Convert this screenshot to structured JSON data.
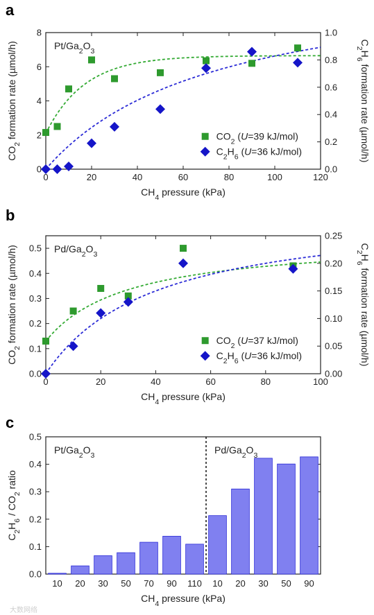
{
  "chart_data": [
    {
      "panel": "a",
      "type": "scatter",
      "annotation": "Pt/Ga2O3",
      "xlabel": "CH4 pressure (kPa)",
      "xlim": [
        0,
        120
      ],
      "xticks": [
        0,
        20,
        40,
        60,
        80,
        100,
        120
      ],
      "y_left": {
        "label": "CO2 formation rate (µmol/h)",
        "lim": [
          0,
          8
        ],
        "ticks": [
          0,
          2,
          4,
          6,
          8
        ],
        "color": "#2eab2e"
      },
      "y_right": {
        "label": "C2H6 formation rate (µmol/h)",
        "lim": [
          0,
          1.0
        ],
        "ticks": [
          "0.0",
          "0.2",
          "0.4",
          "0.6",
          "0.8",
          "1.0"
        ],
        "color": "#2a2ad6"
      },
      "series": [
        {
          "name": "CO2 (U=39 kJ/mol)",
          "label_parts": [
            "CO",
            "2",
            " (",
            "U",
            "=39 kJ/mol)"
          ],
          "axis": "left",
          "marker": "square",
          "color": "#2e9a2e",
          "fit_color": "#33aa33",
          "x": [
            0,
            5,
            10,
            20,
            30,
            50,
            70,
            90,
            110
          ],
          "y": [
            2.15,
            2.5,
            4.7,
            6.4,
            5.3,
            5.65,
            6.35,
            6.2,
            7.1
          ]
        },
        {
          "name": "C2H6 (U=36 kJ/mol)",
          "label_parts": [
            "C",
            "2",
            "H",
            "6",
            " (",
            "U",
            "=36 kJ/mol)"
          ],
          "axis": "right",
          "marker": "diamond",
          "color": "#1515c8",
          "fit_color": "#2a2ad6",
          "x": [
            0,
            5,
            10,
            20,
            30,
            50,
            70,
            90,
            110
          ],
          "y": [
            0.0,
            0.0,
            0.02,
            0.19,
            0.31,
            0.44,
            0.74,
            0.86,
            0.78
          ]
        }
      ]
    },
    {
      "panel": "b",
      "type": "scatter",
      "annotation": "Pd/Ga2O3",
      "xlabel": "CH4 pressure (kPa)",
      "xlim": [
        0,
        100
      ],
      "xticks": [
        0,
        20,
        40,
        60,
        80,
        100
      ],
      "y_left": {
        "label": "CO2 formation rate (µmol/h)",
        "lim": [
          0,
          0.55
        ],
        "ticks": [
          "0.0",
          "0.1",
          "0.2",
          "0.3",
          "0.4",
          "0.5"
        ],
        "color": "#2eab2e"
      },
      "y_right": {
        "label": "C2H6 formation rate (µmol/h)",
        "lim": [
          0,
          0.25
        ],
        "ticks": [
          "0.00",
          "0.05",
          "0.10",
          "0.15",
          "0.20",
          "0.25"
        ],
        "color": "#2a2ad6"
      },
      "series": [
        {
          "name": "CO2 (U=37 kJ/mol)",
          "label_parts": [
            "CO",
            "2",
            " (",
            "U",
            "=37 kJ/mol)"
          ],
          "axis": "left",
          "marker": "square",
          "color": "#2e9a2e",
          "fit_color": "#33aa33",
          "x": [
            0,
            10,
            20,
            30,
            50,
            90
          ],
          "y": [
            0.13,
            0.25,
            0.34,
            0.31,
            0.5,
            0.43
          ]
        },
        {
          "name": "C2H6 (U=36 kJ/mol)",
          "label_parts": [
            "C",
            "2",
            "H",
            "6",
            " (",
            "U",
            "=36 kJ/mol)"
          ],
          "axis": "right",
          "marker": "diamond",
          "color": "#1515c8",
          "fit_color": "#2a2ad6",
          "x": [
            0,
            10,
            20,
            30,
            50,
            90
          ],
          "y": [
            0.0,
            0.05,
            0.11,
            0.13,
            0.2,
            0.19
          ]
        }
      ]
    },
    {
      "panel": "c",
      "type": "bar",
      "xlabel": "CH4 pressure (kPa)",
      "ylabel": "C2H6 / CO2 ratio",
      "ylim": [
        0,
        0.5
      ],
      "yticks": [
        "0.0",
        "0.1",
        "0.2",
        "0.3",
        "0.4",
        "0.5"
      ],
      "bar_color": "#8080f0",
      "groups": [
        {
          "name": "Pt/Ga2O3",
          "categories": [
            "10",
            "20",
            "30",
            "50",
            "70",
            "90",
            "110"
          ],
          "values": [
            0.003,
            0.03,
            0.067,
            0.078,
            0.116,
            0.138,
            0.109
          ]
        },
        {
          "name": "Pd/Ga2O3",
          "categories": [
            "10",
            "20",
            "30",
            "50",
            "90"
          ],
          "values": [
            0.213,
            0.31,
            0.422,
            0.401,
            0.427
          ]
        }
      ]
    }
  ],
  "watermark": "大数网络"
}
